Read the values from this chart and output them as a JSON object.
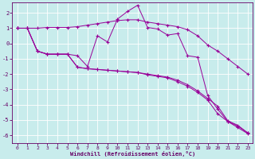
{
  "xlabel": "Windchill (Refroidissement éolien,°C)",
  "background_color": "#c8ecec",
  "grid_color": "#ffffff",
  "line_color": "#990099",
  "xlim": [
    -0.5,
    23.5
  ],
  "ylim": [
    -6.5,
    2.7
  ],
  "yticks": [
    -6,
    -5,
    -4,
    -3,
    -2,
    -1,
    0,
    1,
    2
  ],
  "xticks": [
    0,
    1,
    2,
    3,
    4,
    5,
    6,
    7,
    8,
    9,
    10,
    11,
    12,
    13,
    14,
    15,
    16,
    17,
    18,
    19,
    20,
    21,
    22,
    23
  ],
  "series": [
    {
      "x": [
        0,
        1,
        2,
        3,
        4,
        5,
        6,
        7,
        8,
        9,
        10,
        11,
        12,
        13,
        14,
        15,
        16,
        17,
        18,
        19,
        20,
        21,
        22,
        23
      ],
      "y": [
        1.0,
        1.0,
        1.0,
        1.05,
        1.05,
        1.05,
        1.1,
        1.2,
        1.3,
        1.4,
        1.5,
        1.55,
        1.55,
        1.4,
        1.3,
        1.2,
        1.1,
        0.9,
        0.5,
        -0.1,
        -0.5,
        -1.0,
        -1.5,
        -2.0
      ]
    },
    {
      "x": [
        0,
        1,
        2,
        3,
        4,
        5,
        6,
        7,
        8,
        9,
        10,
        11,
        12,
        13,
        14,
        15,
        16,
        17,
        18,
        19,
        20,
        21,
        22,
        23
      ],
      "y": [
        1.0,
        1.0,
        -0.5,
        -0.7,
        -0.7,
        -0.7,
        -0.8,
        -1.5,
        0.5,
        0.1,
        1.6,
        2.1,
        2.5,
        1.05,
        0.95,
        0.55,
        0.65,
        -0.8,
        -0.9,
        -3.4,
        -4.3,
        -5.1,
        -5.5,
        -5.9
      ]
    },
    {
      "x": [
        0,
        1,
        2,
        3,
        4,
        5,
        6,
        7,
        8,
        9,
        10,
        11,
        12,
        13,
        14,
        15,
        16,
        17,
        18,
        19,
        20,
        21,
        22,
        23
      ],
      "y": [
        1.0,
        1.0,
        -0.5,
        -0.7,
        -0.7,
        -0.7,
        -1.55,
        -1.65,
        -1.7,
        -1.75,
        -1.8,
        -1.85,
        -1.9,
        -2.0,
        -2.1,
        -2.2,
        -2.4,
        -2.7,
        -3.1,
        -3.6,
        -4.1,
        -5.05,
        -5.35,
        -5.85
      ]
    },
    {
      "x": [
        0,
        1,
        2,
        3,
        4,
        5,
        6,
        7,
        8,
        9,
        10,
        11,
        12,
        13,
        14,
        15,
        16,
        17,
        18,
        19,
        20,
        21,
        22,
        23
      ],
      "y": [
        1.0,
        1.0,
        -0.5,
        -0.7,
        -0.7,
        -0.7,
        -1.55,
        -1.65,
        -1.7,
        -1.75,
        -1.8,
        -1.85,
        -1.9,
        -2.05,
        -2.15,
        -2.25,
        -2.5,
        -2.8,
        -3.2,
        -3.7,
        -4.6,
        -5.1,
        -5.4,
        -5.85
      ]
    }
  ]
}
